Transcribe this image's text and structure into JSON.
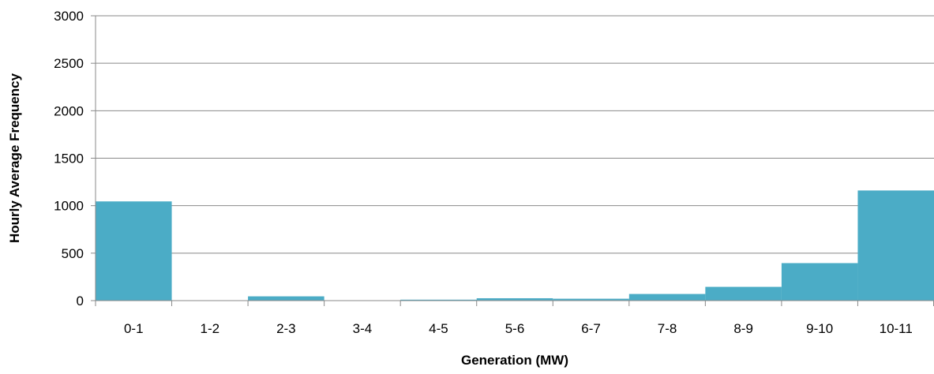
{
  "chart_data": {
    "type": "bar",
    "title": "",
    "xlabel": "Generation (MW)",
    "ylabel": "Hourly Average Frequency",
    "categories": [
      "0-1",
      "1-2",
      "2-3",
      "3-4",
      "4-5",
      "5-6",
      "6-7",
      "7-8",
      "8-9",
      "9-10",
      "10-11"
    ],
    "values": [
      1045,
      0,
      45,
      0,
      10,
      25,
      20,
      70,
      145,
      395,
      1160
    ],
    "ylim": [
      0,
      3000
    ],
    "yticks": [
      "0",
      "500",
      "1000",
      "1500",
      "2000",
      "2500",
      "3000"
    ],
    "grid": true,
    "bar_color": "#4bacc6",
    "gridline_color": "#898989"
  }
}
